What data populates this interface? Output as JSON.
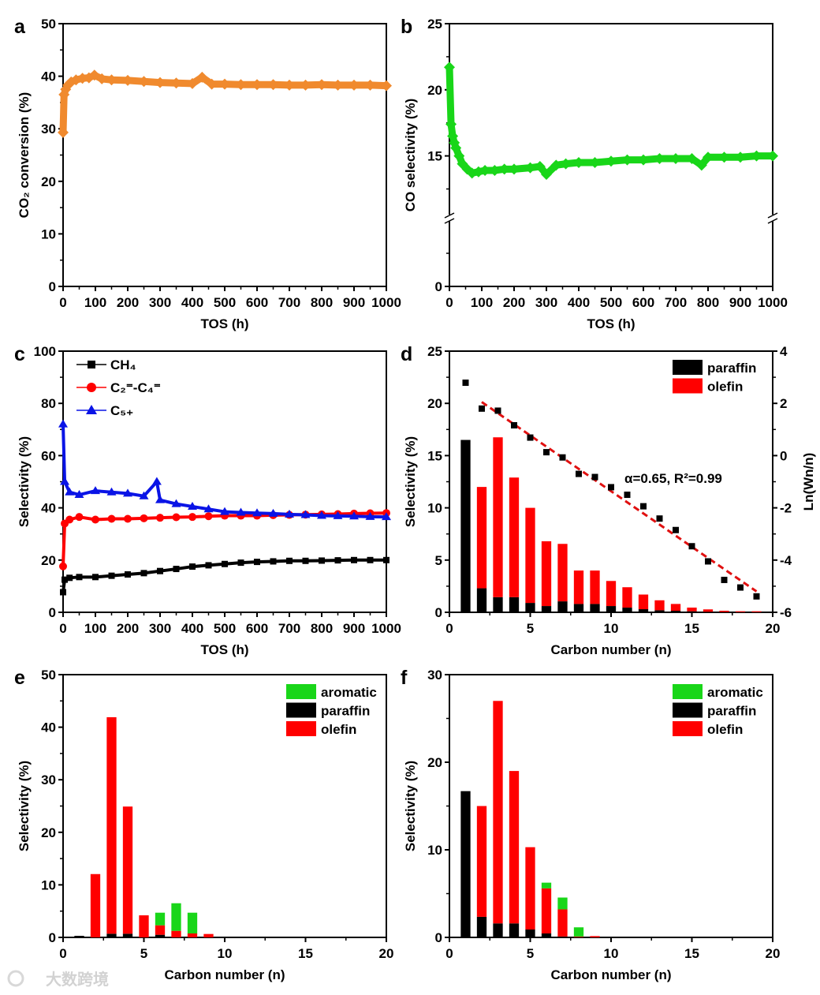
{
  "watermark": "大数跨境",
  "colors": {
    "orange": "#f08a2e",
    "green": "#19d619",
    "black": "#000000",
    "red": "#ff0000",
    "blue": "#0a14e6",
    "fit": "#e01010"
  },
  "chart_data": [
    {
      "id": "a",
      "letter": "a",
      "type": "scatter",
      "xlabel": "TOS (h)",
      "ylabel": "CO₂ conversion (%)",
      "xlim": [
        0,
        1000
      ],
      "ylim": [
        0,
        50
      ],
      "xticks": [
        0,
        100,
        200,
        300,
        400,
        500,
        600,
        700,
        800,
        900,
        1000
      ],
      "yticks": [
        0,
        10,
        20,
        30,
        40,
        50
      ],
      "series": [
        {
          "name": "CO2 conversion",
          "color": "#f08a2e",
          "marker": "diamond",
          "x": [
            0,
            3,
            8,
            15,
            25,
            40,
            60,
            80,
            97,
            120,
            150,
            200,
            250,
            300,
            350,
            400,
            430,
            460,
            500,
            550,
            600,
            650,
            700,
            750,
            800,
            850,
            900,
            950,
            1000
          ],
          "y": [
            29.3,
            36.5,
            37.5,
            38.3,
            38.9,
            39.3,
            39.6,
            39.7,
            40.2,
            39.5,
            39.3,
            39.2,
            39.0,
            38.8,
            38.7,
            38.6,
            39.8,
            38.5,
            38.5,
            38.4,
            38.4,
            38.4,
            38.3,
            38.3,
            38.4,
            38.3,
            38.3,
            38.3,
            38.2
          ]
        }
      ]
    },
    {
      "id": "b",
      "letter": "b",
      "type": "scatter",
      "xlabel": "TOS (h)",
      "ylabel": "CO selectivity (%)",
      "xlim": [
        0,
        1000
      ],
      "ylim": [
        0,
        25
      ],
      "axis_break": [
        5,
        10.5
      ],
      "xticks": [
        0,
        100,
        200,
        300,
        400,
        500,
        600,
        700,
        800,
        900,
        1000
      ],
      "yticks": [
        0,
        15,
        20,
        25
      ],
      "series": [
        {
          "name": "CO selectivity",
          "color": "#19d619",
          "marker": "diamond",
          "x": [
            0,
            5,
            10,
            15,
            20,
            30,
            40,
            55,
            70,
            90,
            110,
            140,
            170,
            200,
            250,
            280,
            300,
            330,
            360,
            400,
            450,
            500,
            550,
            600,
            650,
            700,
            750,
            780,
            800,
            850,
            900,
            950,
            1000
          ],
          "y": [
            21.7,
            17.4,
            16.5,
            16.0,
            15.6,
            15.0,
            14.4,
            14.0,
            13.7,
            13.8,
            13.9,
            13.9,
            14.0,
            14.0,
            14.1,
            14.2,
            13.6,
            14.3,
            14.4,
            14.5,
            14.5,
            14.6,
            14.7,
            14.7,
            14.8,
            14.8,
            14.8,
            14.3,
            14.9,
            14.9,
            14.9,
            15.0,
            15.0
          ]
        }
      ]
    },
    {
      "id": "c",
      "letter": "c",
      "type": "scatter",
      "xlabel": "TOS (h)",
      "ylabel": "Selectivity (%)",
      "xlim": [
        0,
        1000
      ],
      "ylim": [
        0,
        100
      ],
      "xticks": [
        0,
        100,
        200,
        300,
        400,
        500,
        600,
        700,
        800,
        900,
        1000
      ],
      "yticks": [
        0,
        20,
        40,
        60,
        80,
        100
      ],
      "legend_position": "top-left",
      "series": [
        {
          "name": "CH₄",
          "color": "#000000",
          "marker": "square",
          "x": [
            0,
            5,
            20,
            50,
            100,
            150,
            200,
            250,
            300,
            350,
            400,
            450,
            500,
            550,
            600,
            650,
            700,
            750,
            800,
            850,
            900,
            950,
            1000
          ],
          "y": [
            7.7,
            12.5,
            13.2,
            13.5,
            13.5,
            14.0,
            14.5,
            15.0,
            15.8,
            16.6,
            17.5,
            18.0,
            18.5,
            19.0,
            19.3,
            19.5,
            19.7,
            19.7,
            19.8,
            19.9,
            20.0,
            20.0,
            20.0
          ]
        },
        {
          "name": "C₂⁼-C₄⁼",
          "color": "#ff0000",
          "marker": "circle",
          "x": [
            0,
            5,
            20,
            50,
            100,
            150,
            200,
            250,
            300,
            350,
            400,
            450,
            500,
            550,
            600,
            650,
            700,
            750,
            800,
            850,
            900,
            950,
            1000
          ],
          "y": [
            17.6,
            34.0,
            35.5,
            36.5,
            35.5,
            35.8,
            35.8,
            36.0,
            36.2,
            36.4,
            36.5,
            36.8,
            37.0,
            37.0,
            37.0,
            37.2,
            37.3,
            37.4,
            37.5,
            37.6,
            37.8,
            37.9,
            38.0
          ]
        },
        {
          "name": "C₅₊",
          "color": "#0a14e6",
          "marker": "triangle",
          "x": [
            0,
            5,
            20,
            50,
            100,
            150,
            200,
            250,
            290,
            300,
            350,
            400,
            450,
            500,
            550,
            600,
            650,
            700,
            750,
            800,
            850,
            900,
            950,
            1000
          ],
          "y": [
            72.0,
            50.0,
            46.0,
            45.0,
            46.5,
            46.0,
            45.5,
            44.5,
            50.0,
            43.0,
            41.5,
            40.5,
            39.5,
            38.5,
            38.2,
            38.0,
            37.8,
            37.5,
            37.3,
            37.0,
            36.9,
            36.8,
            36.6,
            36.5
          ]
        }
      ]
    },
    {
      "id": "d",
      "letter": "d",
      "type": "bar",
      "xlabel": "Carbon number (n)",
      "ylabel": "Selectivity (%)",
      "y2label": "Ln(Wn/n)",
      "xlim": [
        0,
        20
      ],
      "ylim": [
        0,
        25
      ],
      "y2lim": [
        -6,
        4
      ],
      "xticks": [
        0,
        5,
        10,
        15,
        20
      ],
      "yticks": [
        0,
        5,
        10,
        15,
        20,
        25
      ],
      "y2ticks": [
        -6,
        -4,
        -2,
        0,
        2,
        4
      ],
      "legend_position": "top-right",
      "categories": [
        1,
        2,
        3,
        4,
        5,
        6,
        7,
        8,
        9,
        10,
        11,
        12,
        13,
        14,
        15,
        16,
        17,
        18,
        19
      ],
      "series": [
        {
          "name": "paraffin",
          "color": "#000000",
          "values": [
            16.5,
            2.3,
            1.45,
            1.45,
            0.9,
            0.6,
            1.05,
            0.8,
            0.8,
            0.6,
            0.45,
            0.3,
            0.2,
            0.15,
            0.1,
            0.05,
            0.03,
            0.02,
            0.02
          ]
        },
        {
          "name": "olefin",
          "color": "#ff0000",
          "values": [
            0,
            9.7,
            15.3,
            11.45,
            9.1,
            6.2,
            5.5,
            3.2,
            3.2,
            2.4,
            1.95,
            1.4,
            0.95,
            0.65,
            0.35,
            0.23,
            0.12,
            0.08,
            0.08
          ]
        }
      ],
      "asf": {
        "name": "Ln(Wn/n)",
        "x": [
          1,
          2,
          3,
          4,
          5,
          6,
          7,
          8,
          9,
          10,
          11,
          12,
          13,
          14,
          15,
          16,
          17,
          18,
          19
        ],
        "y": [
          2.79,
          1.8,
          1.72,
          1.16,
          0.69,
          0.13,
          -0.07,
          -0.7,
          -0.82,
          -1.21,
          -1.5,
          -1.94,
          -2.41,
          -2.85,
          -3.47,
          -4.05,
          -4.76,
          -5.05,
          -5.39
        ]
      },
      "fit": {
        "x": [
          2,
          19
        ],
        "y": [
          2.05,
          -5.2
        ]
      },
      "annotation": "α=0.65, R²=0.99"
    },
    {
      "id": "e",
      "letter": "e",
      "type": "bar",
      "xlabel": "Carbon number (n)",
      "ylabel": "Selectivity (%)",
      "xlim": [
        0,
        20
      ],
      "ylim": [
        0,
        50
      ],
      "xticks": [
        0,
        5,
        10,
        15,
        20
      ],
      "yticks": [
        0,
        10,
        20,
        30,
        40,
        50
      ],
      "legend_position": "top-right",
      "categories": [
        1,
        2,
        3,
        4,
        5,
        6,
        7,
        8,
        9
      ],
      "series": [
        {
          "name": "paraffin",
          "color": "#000000",
          "values": [
            0.3,
            0,
            0.7,
            0.7,
            0,
            0.5,
            0,
            0,
            0
          ]
        },
        {
          "name": "olefin",
          "color": "#ff0000",
          "values": [
            0,
            12.05,
            41.2,
            24.2,
            4.2,
            1.8,
            1.25,
            0.75,
            0.65
          ]
        },
        {
          "name": "aromatic",
          "color": "#19d619",
          "values": [
            0,
            0,
            0,
            0,
            0,
            2.4,
            5.25,
            3.95,
            0
          ]
        }
      ],
      "legend_order": [
        "aromatic",
        "paraffin",
        "olefin"
      ]
    },
    {
      "id": "f",
      "letter": "f",
      "type": "bar",
      "xlabel": "Carbon number (n)",
      "ylabel": "Selectivity (%)",
      "xlim": [
        0,
        20
      ],
      "ylim": [
        0,
        30
      ],
      "xticks": [
        0,
        5,
        10,
        15,
        20
      ],
      "yticks": [
        0,
        10,
        20,
        30
      ],
      "legend_position": "top-right",
      "categories": [
        1,
        2,
        3,
        4,
        5,
        6,
        7,
        8,
        9
      ],
      "series": [
        {
          "name": "paraffin",
          "color": "#000000",
          "values": [
            16.7,
            2.35,
            1.6,
            1.6,
            0.9,
            0.45,
            0.1,
            0.05,
            0
          ]
        },
        {
          "name": "olefin",
          "color": "#ff0000",
          "values": [
            0,
            12.65,
            25.4,
            17.4,
            9.4,
            5.15,
            3.1,
            0.05,
            0.15
          ]
        },
        {
          "name": "aromatic",
          "color": "#19d619",
          "values": [
            0,
            0,
            0,
            0,
            0,
            0.65,
            1.35,
            1.05,
            0
          ]
        }
      ],
      "legend_order": [
        "aromatic",
        "paraffin",
        "olefin"
      ]
    }
  ]
}
